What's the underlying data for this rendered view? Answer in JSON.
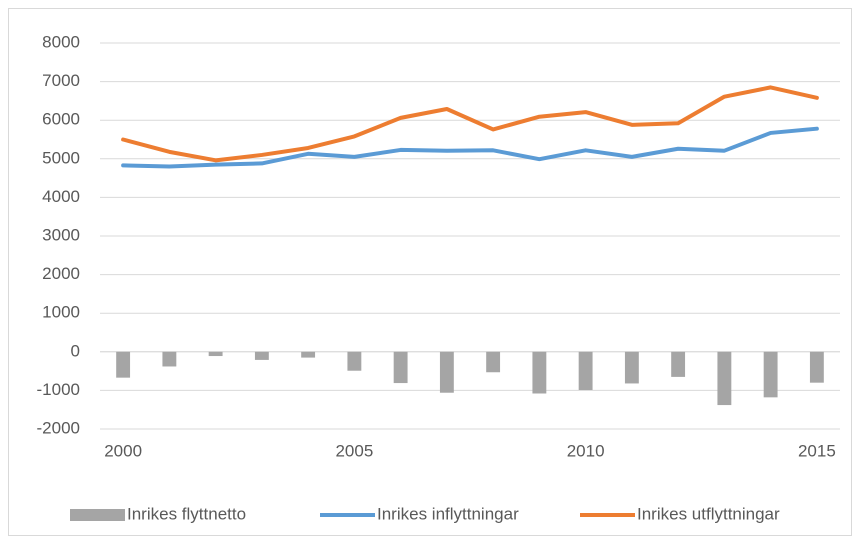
{
  "chart_data": {
    "type": "combo",
    "x": [
      2000,
      2001,
      2002,
      2003,
      2004,
      2005,
      2006,
      2007,
      2008,
      2009,
      2010,
      2011,
      2012,
      2013,
      2014,
      2015
    ],
    "xlim": [
      1999.5,
      2015.5
    ],
    "xticks": [
      2000,
      2005,
      2010,
      2015
    ],
    "ylim": [
      -2000,
      8000
    ],
    "yticks": [
      -2000,
      -1000,
      0,
      1000,
      2000,
      3000,
      4000,
      5000,
      6000,
      7000,
      8000
    ],
    "grid": true,
    "legend": "bottom",
    "series": [
      {
        "name": "Inrikes flyttnetto",
        "type": "bar",
        "color": "#a5a5a5",
        "values": [
          -670,
          -380,
          -110,
          -210,
          -150,
          -490,
          -810,
          -1060,
          -530,
          -1080,
          -990,
          -820,
          -650,
          -1380,
          -1180,
          -800
        ]
      },
      {
        "name": "Inrikes inflyttningar",
        "type": "line",
        "color": "#5b9bd5",
        "values": [
          4830,
          4800,
          4850,
          4880,
          5130,
          5050,
          5230,
          5210,
          5220,
          4990,
          5220,
          5050,
          5260,
          5210,
          5670,
          5780
        ]
      },
      {
        "name": "Inrikes utflyttningar",
        "type": "line",
        "color": "#ed7d31",
        "values": [
          5500,
          5180,
          4960,
          5100,
          5280,
          5580,
          6060,
          6290,
          5760,
          6090,
          6210,
          5880,
          5920,
          6610,
          6850,
          6580
        ]
      }
    ]
  }
}
